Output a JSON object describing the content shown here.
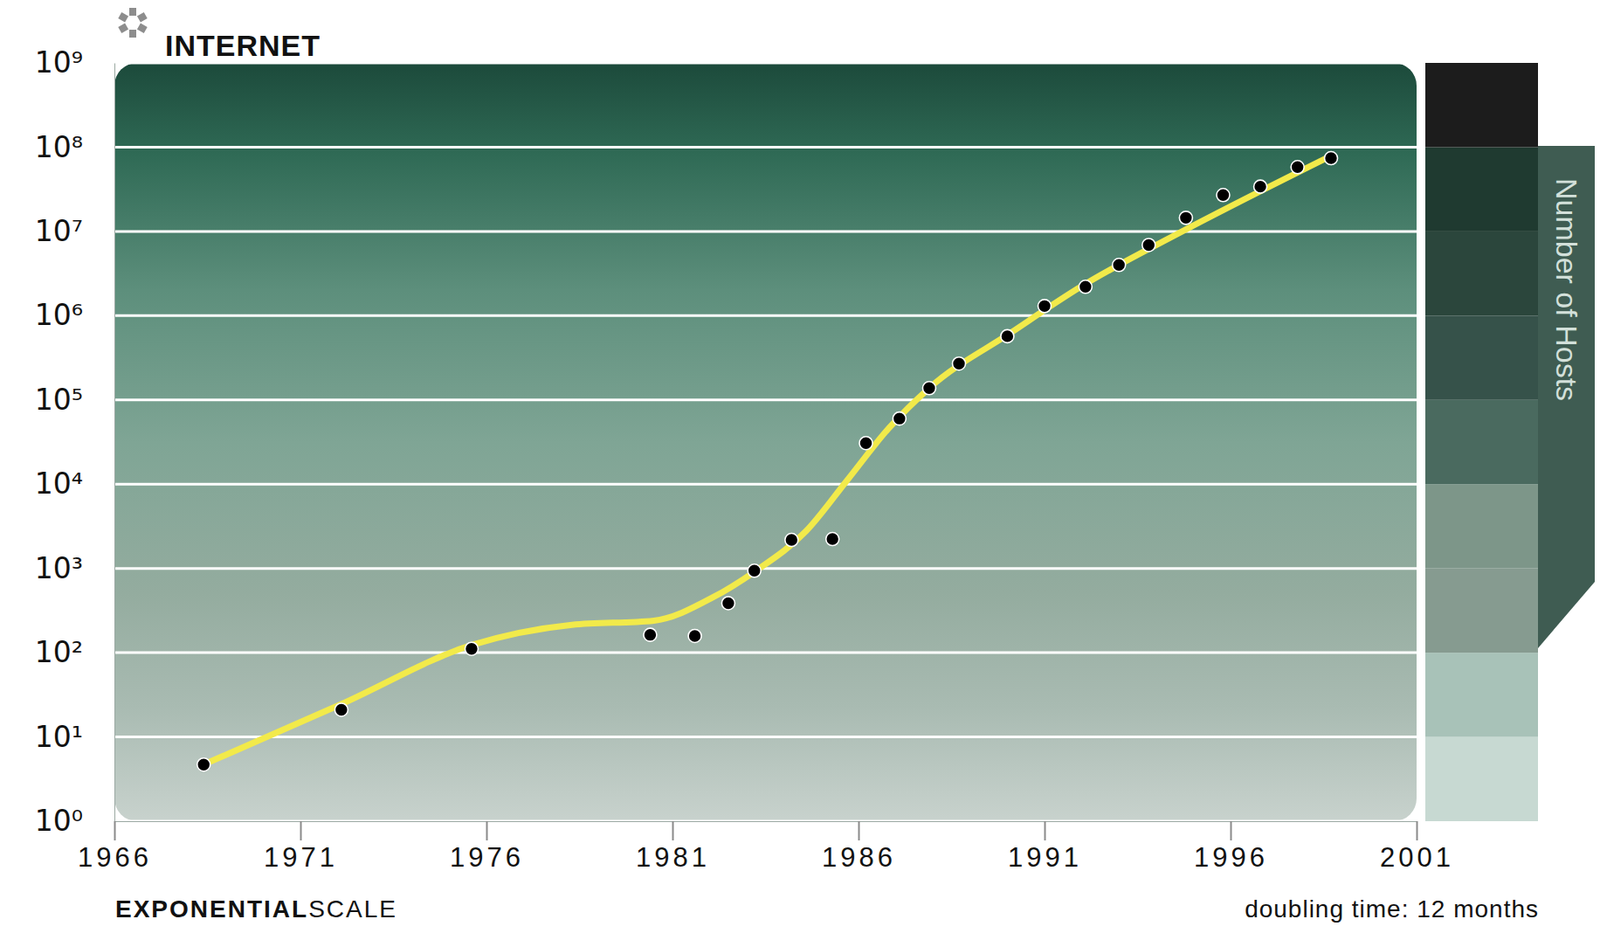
{
  "chart_data": {
    "type": "scatter",
    "title": "INTERNET",
    "y_label": "Number of Hosts",
    "footer": [
      "EXPONENTIAL",
      "SCALE"
    ],
    "note": "doubling time: 12 months",
    "log": "y",
    "grid": true,
    "xlim": [
      1966,
      2001
    ],
    "xticks": [
      1966,
      1971,
      1976,
      1981,
      1986,
      1991,
      1996,
      2001
    ],
    "ylim": [
      1,
      1000000000
    ],
    "yticks": [
      {
        "value": 1,
        "label": "10⁰"
      },
      {
        "value": 10,
        "label": "10¹"
      },
      {
        "value": 100,
        "label": "10²"
      },
      {
        "value": 1000,
        "label": "10³"
      },
      {
        "value": 10000,
        "label": "10⁴"
      },
      {
        "value": 100000,
        "label": "10⁵"
      },
      {
        "value": 1000000,
        "label": "10⁶"
      },
      {
        "value": 10000000,
        "label": "10⁷"
      },
      {
        "value": 100000000,
        "label": "10⁸"
      },
      {
        "value": 1000000000,
        "label": "10⁹"
      }
    ],
    "series": [
      {
        "type": "line",
        "color": "#f2ea4a",
        "line_style": "solid",
        "x": [
          1968.4,
          1972.1,
          1975.6,
          1978.3,
          1980.5,
          1982.1,
          1983.2,
          1984.6,
          1985.7,
          1986.8,
          1987.9,
          1990.1,
          1992.0,
          1994.7,
          1998.7
        ],
        "values": [
          4.7,
          24.5,
          123,
          214,
          240,
          457,
          912,
          2800,
          11200,
          45400,
          138000,
          630000,
          2240000,
          10000000,
          79000000
        ]
      },
      {
        "type": "scatter",
        "color": "#000000",
        "marker": "circle",
        "x": [
          1968.4,
          1972.1,
          1975.6,
          1980.4,
          1981.6,
          1982.5,
          1983.2,
          1984.2,
          1985.3,
          1986.2,
          1987.1,
          1987.9,
          1988.7,
          1990.0,
          1991.0,
          1992.1,
          1993.0,
          1993.8,
          1994.8,
          1995.8,
          1996.8,
          1997.8,
          1998.7
        ],
        "values": [
          4.7,
          21,
          111,
          163,
          158,
          387,
          940,
          2180,
          2230,
          30700,
          60000,
          138000,
          270000,
          570000,
          1300000,
          2200000,
          4000000,
          6900000,
          14500000,
          27000000,
          34000000,
          58000000,
          74000000
        ]
      }
    ]
  }
}
